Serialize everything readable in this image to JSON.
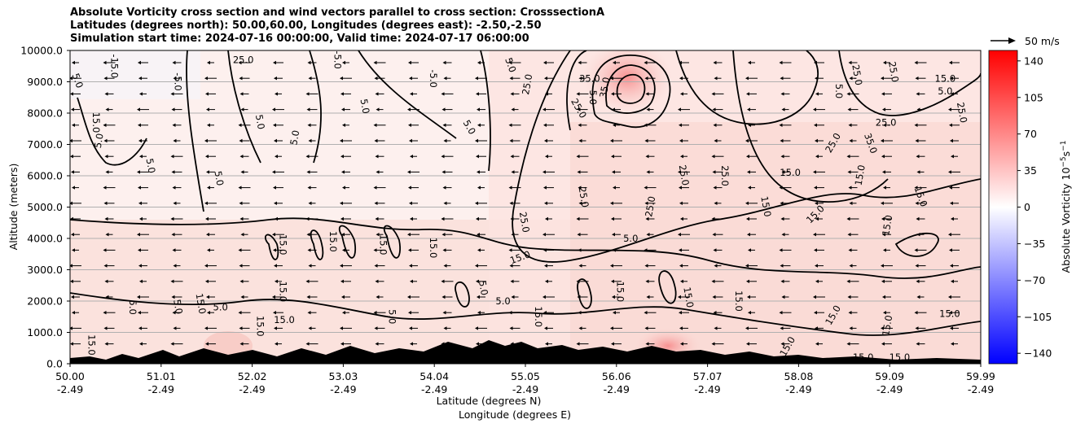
{
  "title": {
    "line1": "Absolute Vorticity cross section and wind vectors parallel to cross section: CrosssectionA",
    "line2": "Latitudes (degrees north): 50.00,60.00, Longitudes (degrees east): -2.50,-2.50",
    "line3": "Simulation start time: 2024-07-16 00:00:00, Valid time: 2024-07-17 06:00:00"
  },
  "chart_data": {
    "type": "heatmap",
    "subtype": "cross-section contour with wind vectors",
    "ylabel": "Altitude (meters)",
    "xlabel_line1": "Latitude (degrees N)",
    "xlabel_line2": "Longitude (degrees E)",
    "ylim": [
      0,
      10000
    ],
    "y_ticks": [
      "0.0",
      "1000.0",
      "2000.0",
      "3000.0",
      "4000.0",
      "5000.0",
      "6000.0",
      "7000.0",
      "8000.0",
      "9000.0",
      "10000.0"
    ],
    "x_ticks": [
      {
        "lat": "50.00",
        "lon": "-2.49"
      },
      {
        "lat": "51.01",
        "lon": "-2.49"
      },
      {
        "lat": "52.02",
        "lon": "-2.49"
      },
      {
        "lat": "53.03",
        "lon": "-2.49"
      },
      {
        "lat": "54.04",
        "lon": "-2.49"
      },
      {
        "lat": "55.05",
        "lon": "-2.49"
      },
      {
        "lat": "56.06",
        "lon": "-2.49"
      },
      {
        "lat": "57.07",
        "lon": "-2.49"
      },
      {
        "lat": "58.08",
        "lon": "-2.49"
      },
      {
        "lat": "59.09",
        "lon": "-2.49"
      },
      {
        "lat": "59.99",
        "lon": "-2.49"
      }
    ],
    "grid": "horizontal",
    "colorbar": {
      "label": "Absolute Vorticity 10",
      "label_sup": "−5",
      "label_s": "s",
      "label_sup2": "−1",
      "range": [
        -150,
        150
      ],
      "ticks": [
        "140",
        "105",
        "70",
        "35",
        "0",
        "−35",
        "−70",
        "−105",
        "−140"
      ],
      "colormap": "bwr"
    },
    "quiver_key": "50 m/s",
    "contour_levels": [
      "5.0",
      "15.0",
      "25.0",
      "35.0"
    ],
    "contour_labels": [
      {
        "text": "35.0",
        "lat": 55.7,
        "alt": 9000,
        "rot": 0
      },
      {
        "text": "35.0",
        "lat": 55.9,
        "alt": 8800,
        "rot": -80
      },
      {
        "text": "25.0",
        "lat": 55.05,
        "alt": 8900,
        "rot": -80
      },
      {
        "text": "25.0",
        "lat": 55.55,
        "alt": 8100,
        "rot": 60
      },
      {
        "text": "5.0",
        "lat": 55.7,
        "alt": 8500,
        "rot": 90
      },
      {
        "text": "5.0",
        "lat": 54.35,
        "alt": 7500,
        "rot": 60
      },
      {
        "text": "5.0",
        "lat": 52.05,
        "alt": 7700,
        "rot": 80
      },
      {
        "text": "5.0",
        "lat": 52.5,
        "alt": 7200,
        "rot": -80
      },
      {
        "text": "5.0",
        "lat": 50.35,
        "alt": 7100,
        "rot": -80
      },
      {
        "text": "5.0",
        "lat": 50.85,
        "alt": 6300,
        "rot": 80
      },
      {
        "text": "5.0",
        "lat": 51.6,
        "alt": 5900,
        "rot": 80
      },
      {
        "text": "15.0",
        "lat": 50.25,
        "alt": 7700,
        "rot": 90
      },
      {
        "text": "15.0",
        "lat": 59.6,
        "alt": 9000,
        "rot": 0
      },
      {
        "text": "5.0",
        "lat": 59.6,
        "alt": 8600,
        "rot": 0
      },
      {
        "text": "25.0",
        "lat": 58.95,
        "alt": 7600,
        "rot": 0
      },
      {
        "text": "35.0",
        "lat": 58.75,
        "alt": 7000,
        "rot": 70
      },
      {
        "text": "25.0",
        "lat": 58.4,
        "alt": 7000,
        "rot": -60
      },
      {
        "text": "15.0",
        "lat": 58.7,
        "alt": 6000,
        "rot": -80
      },
      {
        "text": "15.0",
        "lat": 57.9,
        "alt": 6000,
        "rot": 0
      },
      {
        "text": "25.0",
        "lat": 56.7,
        "alt": 6000,
        "rot": 80
      },
      {
        "text": "25.0",
        "lat": 57.15,
        "alt": 6000,
        "rot": 90
      },
      {
        "text": "25.0",
        "lat": 55.6,
        "alt": 5300,
        "rot": 80
      },
      {
        "text": "25.0",
        "lat": 56.4,
        "alt": 5000,
        "rot": -80
      },
      {
        "text": "15.0",
        "lat": 57.6,
        "alt": 5000,
        "rot": 80
      },
      {
        "text": "25.0",
        "lat": 54.95,
        "alt": 4500,
        "rot": 80
      },
      {
        "text": "15.0",
        "lat": 59.3,
        "alt": 5300,
        "rot": 70
      },
      {
        "text": "15.0",
        "lat": 58.2,
        "alt": 4700,
        "rot": -45
      },
      {
        "text": "15.0",
        "lat": 59.0,
        "alt": 4400,
        "rot": -80
      },
      {
        "text": "5.0",
        "lat": 56.15,
        "alt": 3900,
        "rot": 0
      },
      {
        "text": "15.0",
        "lat": 54.95,
        "alt": 3300,
        "rot": -20
      },
      {
        "text": "15.0",
        "lat": 52.3,
        "alt": 3800,
        "rot": 90
      },
      {
        "text": "15.0",
        "lat": 52.85,
        "alt": 3900,
        "rot": 90
      },
      {
        "text": "15.0",
        "lat": 53.4,
        "alt": 3800,
        "rot": 90
      },
      {
        "text": "15.0",
        "lat": 53.95,
        "alt": 3700,
        "rot": 90
      },
      {
        "text": "15.0",
        "lat": 52.3,
        "alt": 2300,
        "rot": 90
      },
      {
        "text": "5.0",
        "lat": 54.5,
        "alt": 2400,
        "rot": 80
      },
      {
        "text": "15.0",
        "lat": 56.0,
        "alt": 2300,
        "rot": 90
      },
      {
        "text": "15.0",
        "lat": 51.4,
        "alt": 1900,
        "rot": 80
      },
      {
        "text": "5.0",
        "lat": 51.15,
        "alt": 1800,
        "rot": 80
      },
      {
        "text": "5.0",
        "lat": 51.65,
        "alt": 1700,
        "rot": 0
      },
      {
        "text": "5.0",
        "lat": 50.65,
        "alt": 1800,
        "rot": 90
      },
      {
        "text": "5.0",
        "lat": 54.75,
        "alt": 1900,
        "rot": 0
      },
      {
        "text": "15.0",
        "lat": 52.35,
        "alt": 1300,
        "rot": 0
      },
      {
        "text": "15.0",
        "lat": 57.3,
        "alt": 2000,
        "rot": 90
      },
      {
        "text": "15.0",
        "lat": 56.75,
        "alt": 2100,
        "rot": 80
      },
      {
        "text": "15.0",
        "lat": 59.65,
        "alt": 1500,
        "rot": 0
      },
      {
        "text": "15.0",
        "lat": 59.0,
        "alt": 1200,
        "rot": -80
      },
      {
        "text": "15.0",
        "lat": 58.4,
        "alt": 1500,
        "rot": -60
      },
      {
        "text": "15.0",
        "lat": 50.2,
        "alt": 600,
        "rot": 90
      },
      {
        "text": "15.0",
        "lat": 52.05,
        "alt": 1200,
        "rot": 90
      },
      {
        "text": "5.0",
        "lat": 53.5,
        "alt": 1500,
        "rot": 90
      },
      {
        "text": "15.0",
        "lat": 55.1,
        "alt": 1500,
        "rot": 90
      },
      {
        "text": "15.0",
        "lat": 57.9,
        "alt": 500,
        "rot": -60
      },
      {
        "text": "15.0",
        "lat": 59.1,
        "alt": 100,
        "rot": 0
      },
      {
        "text": "15.0",
        "lat": 58.7,
        "alt": 100,
        "rot": 0
      },
      {
        "text": "5.0",
        "lat": 50.05,
        "alt": 9000,
        "rot": 70
      },
      {
        "text": "25.0",
        "lat": 51.9,
        "alt": 9600,
        "rot": 0
      },
      {
        "text": "-5.0",
        "lat": 51.15,
        "alt": 9000,
        "rot": 90
      },
      {
        "text": "-5.0",
        "lat": 52.9,
        "alt": 9700,
        "rot": 90
      },
      {
        "text": "-5.0",
        "lat": 53.95,
        "alt": 9100,
        "rot": 90
      },
      {
        "text": "-15.0",
        "lat": 50.45,
        "alt": 9500,
        "rot": 90
      },
      {
        "text": "5.0",
        "lat": 54.8,
        "alt": 9500,
        "rot": 70
      },
      {
        "text": "5.0",
        "lat": 53.2,
        "alt": 8200,
        "rot": 80
      },
      {
        "text": "15.0",
        "lat": 59.75,
        "alt": 10000,
        "rot": 0
      },
      {
        "text": "25.0",
        "lat": 59.75,
        "alt": 8000,
        "rot": 80
      },
      {
        "text": "5.0",
        "lat": 58.4,
        "alt": 8700,
        "rot": 90
      },
      {
        "text": "25.0",
        "lat": 58.6,
        "alt": 9200,
        "rot": 80
      },
      {
        "text": "25.0",
        "lat": 59.0,
        "alt": 9300,
        "rot": 80
      }
    ]
  }
}
